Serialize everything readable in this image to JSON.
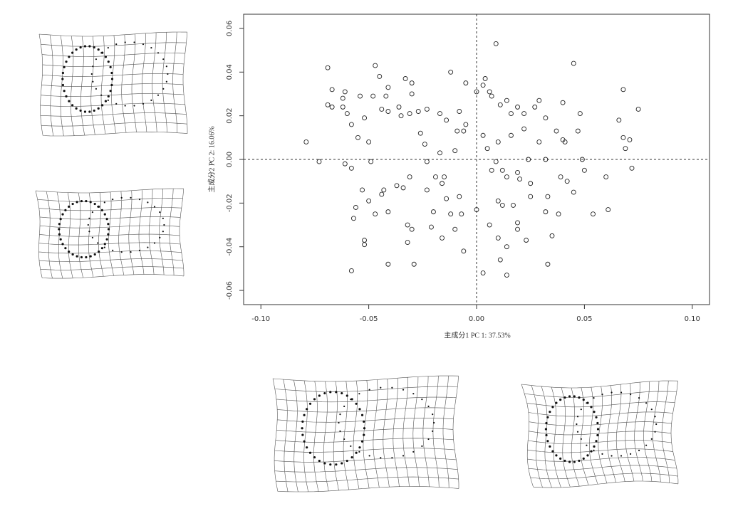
{
  "chart_data": {
    "type": "scatter",
    "xlabel": "主成分1 PC 1: 37.53%",
    "ylabel": "主成分2 PC 2: 16.06%",
    "color": "#222222",
    "xlim": [
      -0.108,
      0.108
    ],
    "ylim": [
      -0.0665,
      0.0665
    ],
    "xticks": [
      {
        "value": -0.1,
        "label": "-0.10"
      },
      {
        "value": -0.05,
        "label": "-0.05"
      },
      {
        "value": 0,
        "label": "0.00"
      },
      {
        "value": 0.05,
        "label": "0.05"
      },
      {
        "value": 0.1,
        "label": "0.10"
      }
    ],
    "yticks": [
      {
        "value": -0.06,
        "label": "-0.06"
      },
      {
        "value": -0.04,
        "label": "-0.04"
      },
      {
        "value": -0.02,
        "label": "-0.02"
      },
      {
        "value": 0,
        "label": "0.00"
      },
      {
        "value": 0.02,
        "label": "0.02"
      },
      {
        "value": 0.04,
        "label": "0.04"
      },
      {
        "value": 0.06,
        "label": "0.06"
      }
    ],
    "x": [
      -0.079,
      -0.069,
      -0.073,
      -0.067,
      -0.069,
      -0.067,
      -0.062,
      -0.061,
      -0.062,
      -0.06,
      -0.058,
      -0.061,
      -0.058,
      -0.055,
      -0.054,
      -0.052,
      -0.05,
      -0.049,
      -0.048,
      -0.047,
      -0.045,
      -0.044,
      -0.042,
      -0.041,
      -0.041,
      -0.036,
      -0.033,
      -0.03,
      -0.035,
      -0.031,
      -0.03,
      -0.027,
      -0.026,
      -0.024,
      -0.023,
      -0.017,
      -0.017,
      -0.014,
      -0.012,
      -0.01,
      -0.009,
      -0.008,
      -0.005,
      -0.006,
      -0.005,
      0.0,
      0.003,
      0.004,
      0.009,
      0.006,
      0.007,
      0.011,
      0.014,
      0.016,
      0.019,
      0.022,
      0.027,
      0.029,
      0.032,
      0.04,
      0.045,
      0.048,
      0.068,
      0.066,
      0.075,
      0.068,
      0.071,
      0.069,
      0.072,
      0.06,
      0.049,
      0.05,
      0.047,
      0.041,
      0.04,
      0.037,
      0.032,
      0.029,
      0.022,
      0.016,
      0.01,
      0.005,
      0.003,
      0.024,
      0.039,
      0.042,
      0.025,
      0.02,
      0.014,
      0.007,
      0.012,
      0.009,
      0.019,
      0.033,
      0.025,
      0.045,
      0.032,
      0.038,
      0.054,
      0.061,
      0.017,
      0.01,
      0.012,
      0.019,
      0.019,
      0.006,
      0.01,
      0.014,
      0.003,
      0.014,
      0.033,
      0.035,
      0.023,
      0.011,
      0.0,
      -0.008,
      -0.007,
      -0.01,
      -0.006,
      -0.015,
      -0.019,
      -0.016,
      -0.023,
      -0.014,
      -0.02,
      -0.012,
      -0.021,
      -0.016,
      -0.032,
      -0.03,
      -0.032,
      -0.029,
      -0.041,
      -0.047,
      -0.041,
      -0.044,
      -0.043,
      -0.053,
      -0.05,
      -0.056,
      -0.057,
      -0.052,
      -0.052,
      -0.058,
      -0.037,
      -0.034,
      -0.031,
      -0.023
    ],
    "values": [
      0.008,
      0.042,
      -0.001,
      0.032,
      0.025,
      0.024,
      0.024,
      0.031,
      0.028,
      0.021,
      -0.004,
      -0.002,
      0.016,
      0.01,
      0.029,
      0.019,
      0.008,
      -0.001,
      0.029,
      0.043,
      0.038,
      0.023,
      0.029,
      0.022,
      0.033,
      0.024,
      0.037,
      0.035,
      0.02,
      0.021,
      0.03,
      0.022,
      0.012,
      0.007,
      0.023,
      0.021,
      0.003,
      0.018,
      0.04,
      0.004,
      0.013,
      0.022,
      0.035,
      0.013,
      0.016,
      0.031,
      0.034,
      0.037,
      0.053,
      0.031,
      0.029,
      0.025,
      0.027,
      0.021,
      0.024,
      0.021,
      0.024,
      0.027,
      0.019,
      0.026,
      0.044,
      0.021,
      0.032,
      0.018,
      0.023,
      0.01,
      0.009,
      0.005,
      -0.004,
      -0.008,
      0.0,
      -0.005,
      0.013,
      0.008,
      0.009,
      0.013,
      0.0,
      0.008,
      0.014,
      0.011,
      0.008,
      0.005,
      0.011,
      0.0,
      -0.008,
      -0.01,
      -0.011,
      -0.009,
      -0.008,
      -0.005,
      -0.005,
      -0.001,
      -0.006,
      -0.017,
      -0.017,
      -0.015,
      -0.024,
      -0.025,
      -0.025,
      -0.023,
      -0.021,
      -0.019,
      -0.021,
      -0.029,
      -0.032,
      -0.03,
      -0.036,
      -0.04,
      -0.052,
      -0.053,
      -0.048,
      -0.035,
      -0.037,
      -0.046,
      -0.023,
      -0.017,
      -0.025,
      -0.032,
      -0.042,
      -0.008,
      -0.008,
      -0.011,
      -0.014,
      -0.018,
      -0.024,
      -0.025,
      -0.031,
      -0.036,
      -0.03,
      -0.032,
      -0.038,
      -0.048,
      -0.048,
      -0.025,
      -0.024,
      -0.016,
      -0.014,
      -0.014,
      -0.019,
      -0.022,
      -0.027,
      -0.037,
      -0.039,
      -0.051,
      -0.012,
      -0.013,
      -0.008,
      -0.001
    ]
  }
}
